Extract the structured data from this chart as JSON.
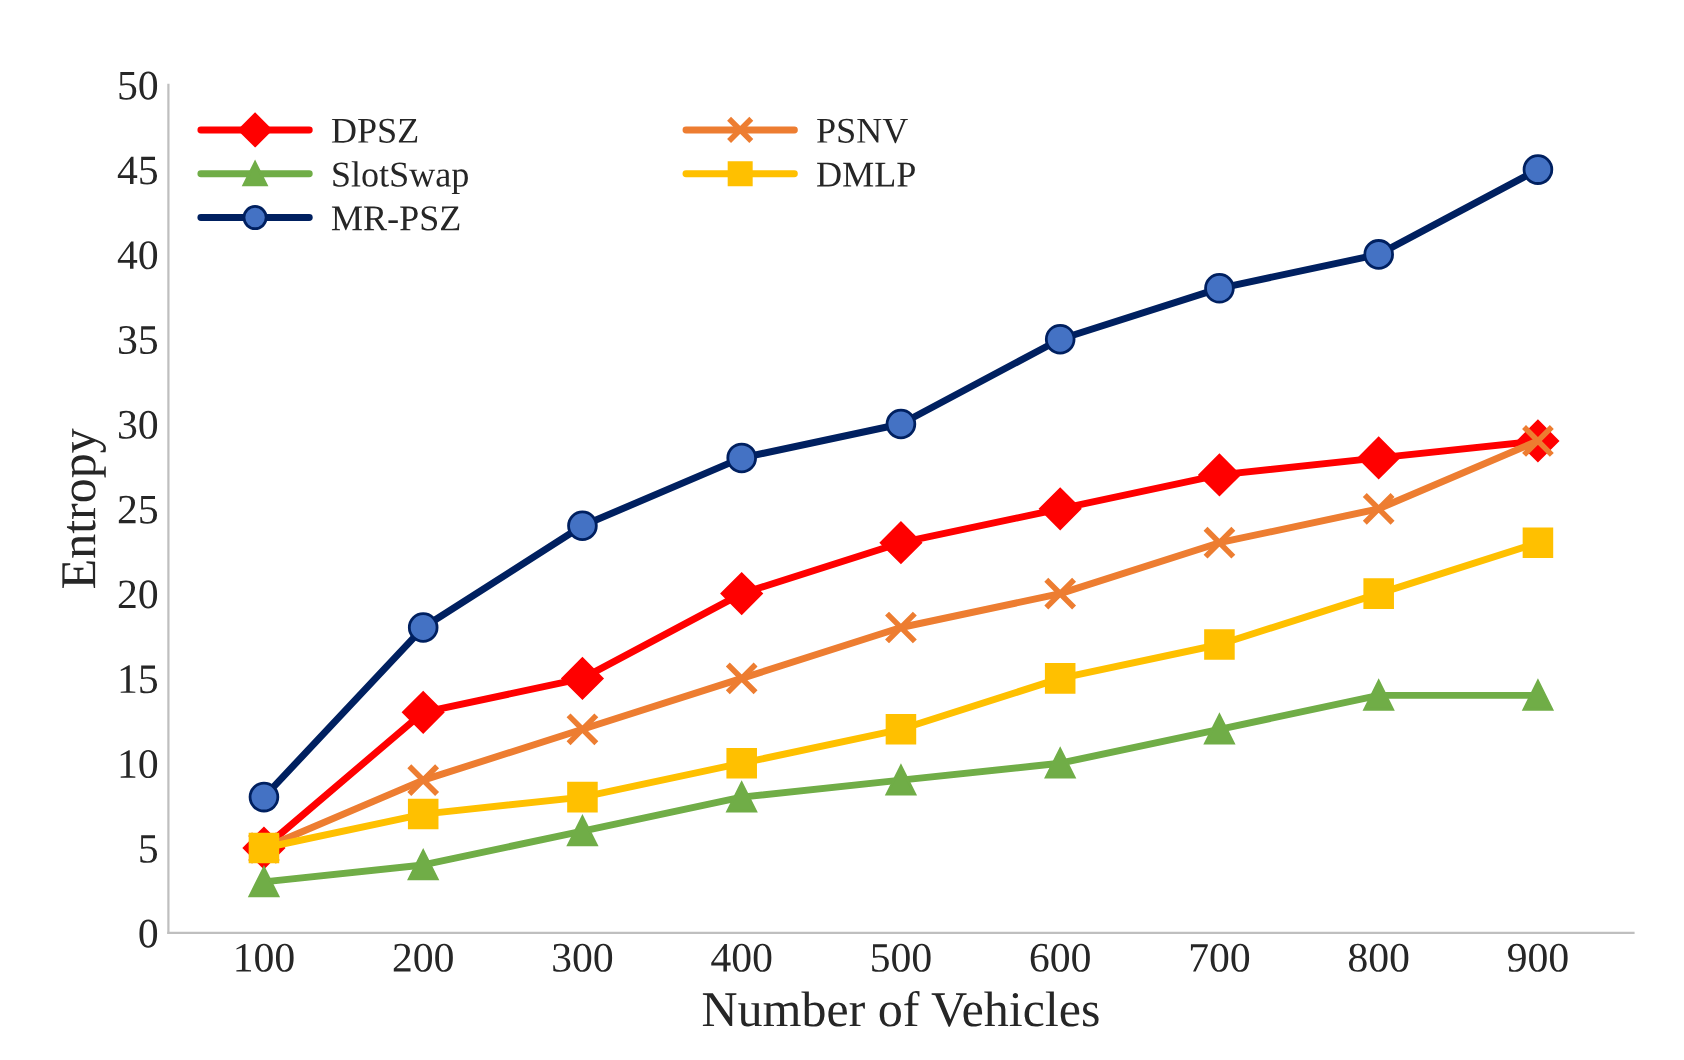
{
  "chart_data": {
    "type": "line",
    "xlabel": "Number of Vehicles",
    "ylabel": "Entropy",
    "categories": [
      "100",
      "200",
      "300",
      "400",
      "500",
      "600",
      "700",
      "800",
      "900"
    ],
    "series": [
      {
        "name": "DPSZ",
        "color": "#ff0000",
        "marker": "diamond",
        "values": [
          5,
          13,
          15,
          20,
          23,
          25,
          27,
          28,
          29
        ]
      },
      {
        "name": "PSNV",
        "color": "#ed7d31",
        "marker": "cross",
        "values": [
          5,
          9,
          12,
          15,
          18,
          20,
          23,
          25,
          29
        ]
      },
      {
        "name": "SlotSwap",
        "color": "#70ad47",
        "marker": "triangle",
        "values": [
          3,
          4,
          6,
          8,
          9,
          10,
          12,
          14,
          14
        ]
      },
      {
        "name": "DMLP",
        "color": "#ffc000",
        "marker": "square",
        "values": [
          5,
          7,
          8,
          10,
          12,
          15,
          17,
          20,
          23
        ]
      },
      {
        "name": "MR-PSZ",
        "color": "#002060",
        "marker": "circle",
        "values": [
          8,
          18,
          24,
          28,
          30,
          35,
          38,
          40,
          45
        ]
      }
    ],
    "ylim": [
      0,
      50
    ],
    "yticks": [
      0,
      5,
      10,
      15,
      20,
      25,
      30,
      35,
      40,
      45,
      50
    ],
    "grid": false,
    "legend": "top left",
    "line_style": "solid"
  }
}
